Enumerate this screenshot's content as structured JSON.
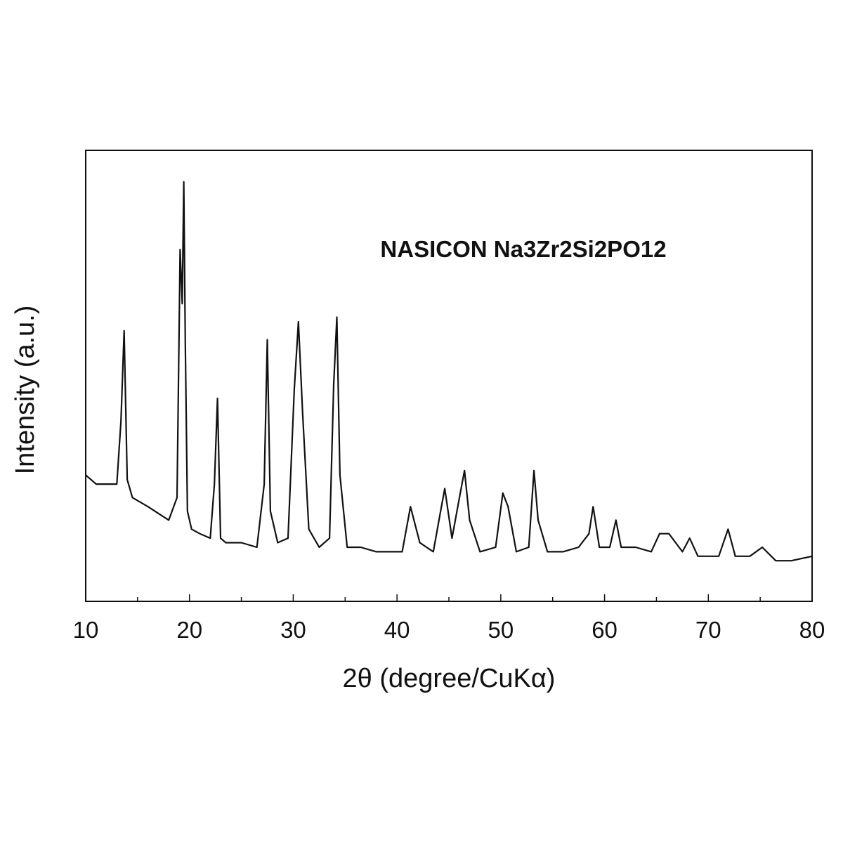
{
  "chart_data": {
    "type": "line",
    "title": "",
    "annotation": "NASICON Na3Zr2Si2PO12",
    "xlabel": "2θ (degree/CuKα)",
    "ylabel": "Intensity (a.u.)",
    "xlim": [
      10,
      80
    ],
    "ylim": [
      0,
      1
    ],
    "x_ticks": [
      "10",
      "20",
      "30",
      "40",
      "50",
      "60",
      "70",
      "80"
    ],
    "y_ticks": [],
    "grid": false,
    "legend": "none",
    "line_color": "#111111",
    "series": [
      {
        "x": [
          10,
          11,
          12,
          13,
          13.4,
          13.7,
          14,
          14.5,
          16,
          18,
          18.8,
          19.1,
          19.3,
          19.45,
          19.6,
          19.8,
          20.2,
          21,
          22,
          22.4,
          22.7,
          23,
          23.5,
          25,
          26.5,
          27.2,
          27.5,
          27.8,
          28.5,
          29.5,
          30.1,
          30.5,
          30.9,
          31.5,
          32.5,
          33.5,
          33.9,
          34.2,
          34.5,
          35.2,
          36.5,
          38,
          40.5,
          41.3,
          42.2,
          43.5,
          44.2,
          44.6,
          45.3,
          46.1,
          46.5,
          47,
          48,
          49.5,
          50.2,
          50.7,
          51.5,
          52.7,
          53.2,
          53.6,
          54.5,
          56,
          57.5,
          58.5,
          58.9,
          59.5,
          60.5,
          61.1,
          61.6,
          63,
          64.5,
          65.3,
          66.2,
          67.5,
          68.2,
          69,
          71,
          71.9,
          72.6,
          74,
          75.2,
          76.5,
          78,
          80
        ],
        "y": [
          0.28,
          0.26,
          0.26,
          0.26,
          0.4,
          0.6,
          0.27,
          0.23,
          0.21,
          0.18,
          0.23,
          0.78,
          0.66,
          0.93,
          0.57,
          0.2,
          0.16,
          0.15,
          0.14,
          0.26,
          0.45,
          0.14,
          0.13,
          0.13,
          0.12,
          0.26,
          0.58,
          0.2,
          0.13,
          0.14,
          0.47,
          0.62,
          0.42,
          0.16,
          0.12,
          0.14,
          0.48,
          0.63,
          0.28,
          0.12,
          0.12,
          0.11,
          0.11,
          0.21,
          0.13,
          0.11,
          0.2,
          0.25,
          0.14,
          0.24,
          0.29,
          0.18,
          0.11,
          0.12,
          0.24,
          0.21,
          0.11,
          0.12,
          0.29,
          0.18,
          0.11,
          0.11,
          0.12,
          0.15,
          0.21,
          0.12,
          0.12,
          0.18,
          0.12,
          0.12,
          0.11,
          0.15,
          0.15,
          0.11,
          0.14,
          0.1,
          0.1,
          0.16,
          0.1,
          0.1,
          0.12,
          0.09,
          0.09,
          0.1
        ]
      }
    ]
  }
}
